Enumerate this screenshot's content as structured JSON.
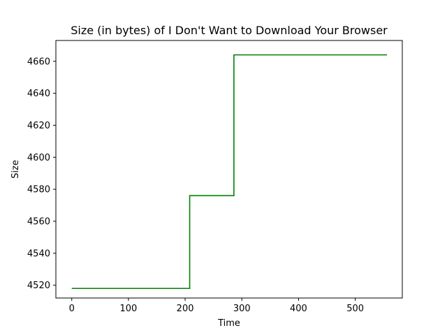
{
  "chart_data": {
    "type": "line",
    "title": "Size (in bytes) of I Don't Want to Download Your Browser",
    "xlabel": "Time",
    "ylabel": "Size",
    "xlim": [
      -28,
      583
    ],
    "ylim": [
      4512,
      4673
    ],
    "xticks": [
      0,
      100,
      200,
      300,
      400,
      500
    ],
    "yticks": [
      4520,
      4540,
      4560,
      4580,
      4600,
      4620,
      4640,
      4660
    ],
    "grid": false,
    "legend": "none",
    "series": [
      {
        "color": "#008000",
        "x": [
          0,
          208,
          208,
          286,
          286,
          556
        ],
        "y": [
          4518,
          4518,
          4576,
          4576,
          4664,
          4664
        ]
      }
    ]
  }
}
